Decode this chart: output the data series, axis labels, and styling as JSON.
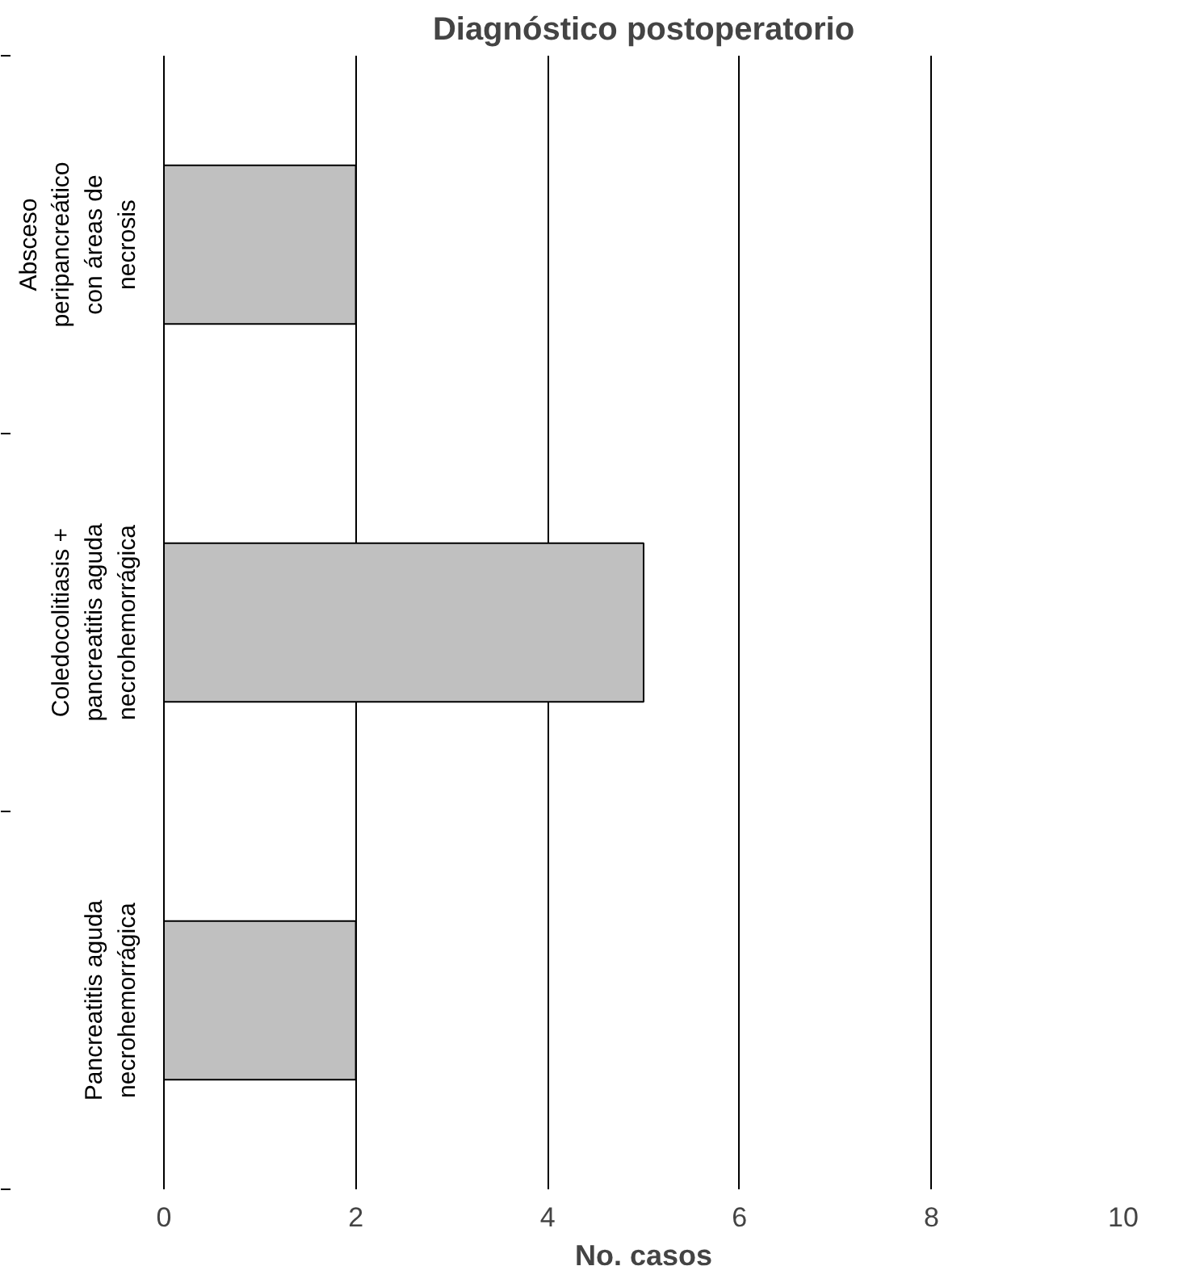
{
  "chart_data": {
    "type": "bar",
    "orientation": "horizontal",
    "title": "Diagnóstico postoperatorio",
    "xlabel": "No. casos",
    "categories": [
      "Absceso\nperipancreático\ncon áreas de\nnecrosis",
      "Coledocolitiasis +\npancreatitis aguda\nnecrohemorrágica",
      "Pancreatitis aguda\nnecrohemorrágica"
    ],
    "values": [
      2,
      5,
      2
    ],
    "color": "#c0c0c0",
    "xlim": [
      0,
      10
    ],
    "xticks": [
      0,
      2,
      4,
      6,
      8,
      10
    ],
    "grid": "x"
  }
}
